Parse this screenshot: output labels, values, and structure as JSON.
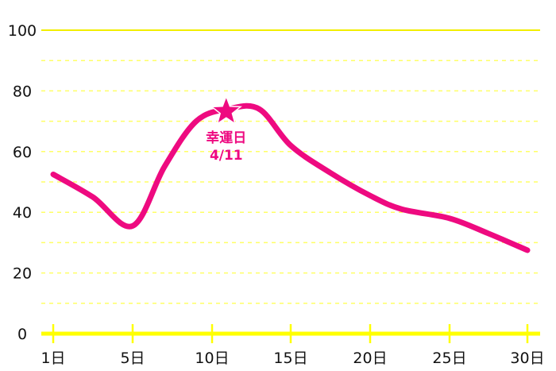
{
  "chart_data": {
    "type": "line",
    "title": "",
    "xlabel": "",
    "ylabel": "",
    "ylim": [
      0,
      100
    ],
    "y_ticks": [
      "0",
      "20",
      "40",
      "60",
      "80",
      "100"
    ],
    "x_ticks": [
      {
        "day": 1,
        "label": "1日"
      },
      {
        "day": 5,
        "label": "5日"
      },
      {
        "day": 10,
        "label": "10日"
      },
      {
        "day": 15,
        "label": "15日"
      },
      {
        "day": 20,
        "label": "20日"
      },
      {
        "day": 25,
        "label": "25日"
      },
      {
        "day": 30,
        "label": "30日"
      }
    ],
    "grid": "horizontal dashed every 10",
    "series": [
      {
        "color": "#ee0a80",
        "points": [
          [
            1,
            52.5
          ],
          [
            3,
            45
          ],
          [
            5,
            35.5
          ],
          [
            7,
            55
          ],
          [
            9,
            70
          ],
          [
            11,
            74
          ],
          [
            13,
            74
          ],
          [
            15,
            62
          ],
          [
            17.5,
            53
          ],
          [
            20,
            45.5
          ],
          [
            22,
            41
          ],
          [
            25,
            38
          ],
          [
            27.5,
            33
          ],
          [
            30,
            27.5
          ]
        ]
      }
    ],
    "annotation": {
      "day": 11,
      "value": 74,
      "marker": "star-icon",
      "line1": "幸運日",
      "line2": "4/11",
      "color": "#ee0a80"
    },
    "colors": {
      "line": "#ee0a80",
      "axis": "#ffff00",
      "grid": "#ffff66"
    }
  }
}
